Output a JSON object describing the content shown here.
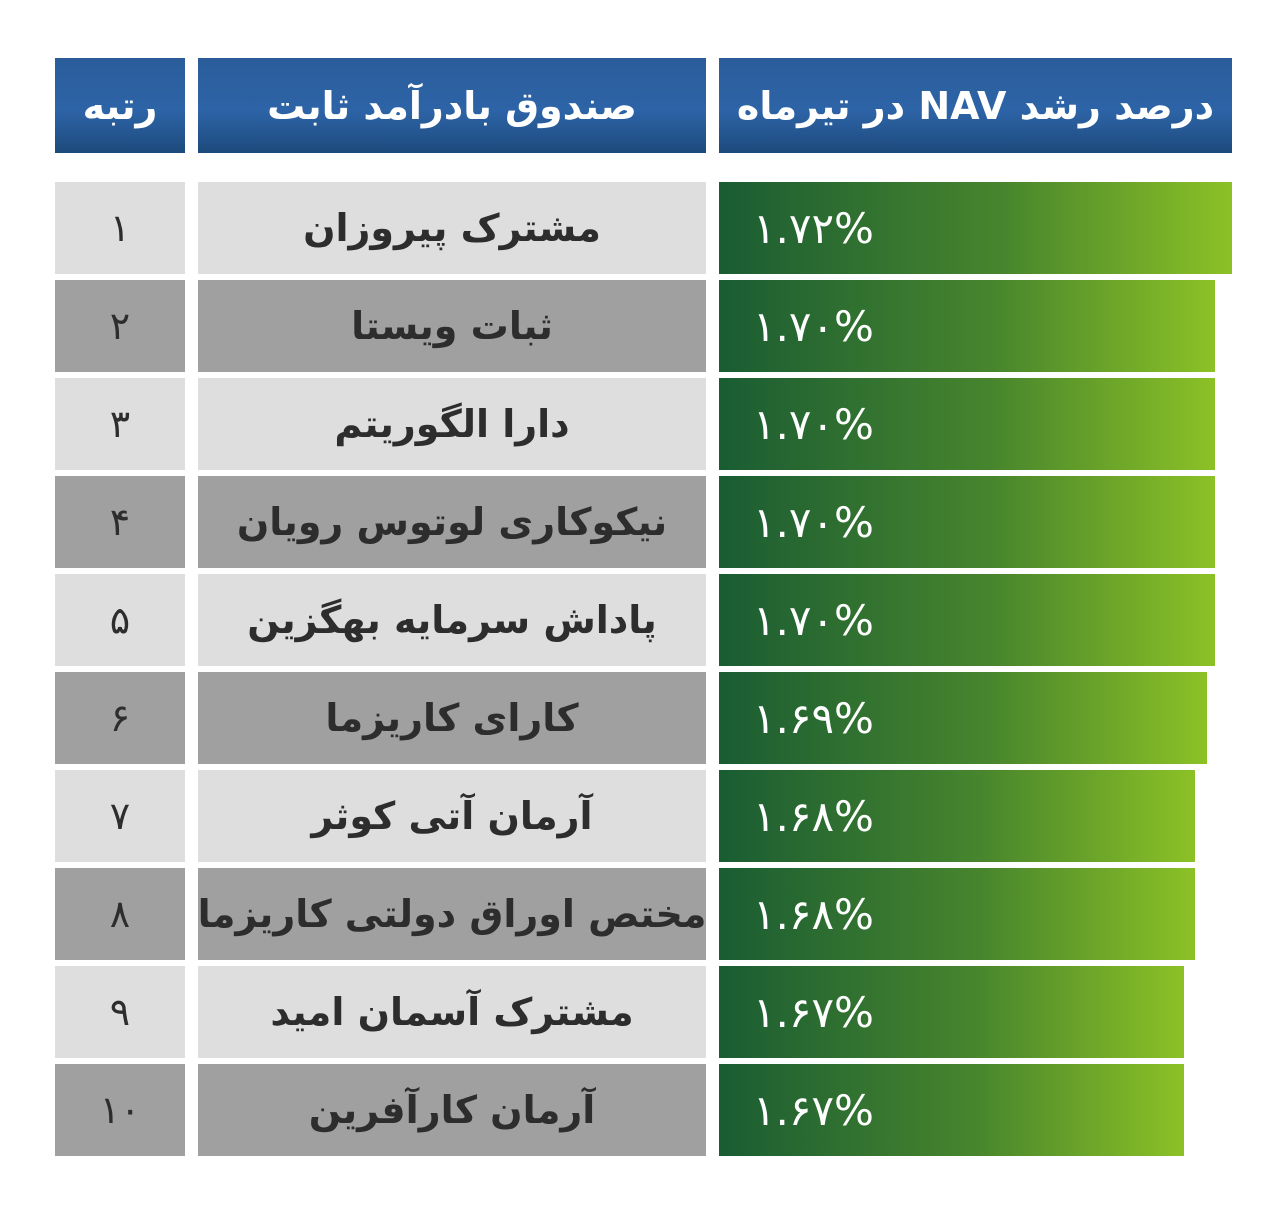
{
  "header": {
    "rank_label": "رتبه",
    "fund_label": "صندوق بادرآمد ثابت",
    "value_label": "درصد رشد NAV در تیرماه"
  },
  "colors": {
    "header_blue_top": "#2a5c9a",
    "header_blue_mid": "#2d64a7",
    "header_blue_bottom": "#1d4a7c",
    "bar_green_dark": "#1a5c33",
    "bar_green_light": "#8cc126",
    "row_light_gray": "#dedede",
    "row_dark_gray": "#a0a0a0",
    "text_dark": "#2d2d2d",
    "text_white": "#ffffff"
  },
  "chart_data": {
    "type": "bar",
    "orientation": "horizontal",
    "title": "درصد رشد NAV در تیرماه",
    "columns": {
      "rank": "رتبه",
      "fund": "صندوق بادرآمد ثابت",
      "value": "درصد رشد NAV در تیرماه"
    },
    "legend_position": "none",
    "grid": false,
    "rows": [
      {
        "rank": 1,
        "rank_fa": "۱",
        "name": "مشترک پیروزان",
        "value": 1.72,
        "label": "۱.۷۲%",
        "bar_pct": 100
      },
      {
        "rank": 2,
        "rank_fa": "۲",
        "name": "ثبات ویستا",
        "value": 1.7,
        "label": "۱.۷۰%",
        "bar_pct": 96.7
      },
      {
        "rank": 3,
        "rank_fa": "۳",
        "name": "دارا الگوریتم",
        "value": 1.7,
        "label": "۱.۷۰%",
        "bar_pct": 96.7
      },
      {
        "rank": 4,
        "rank_fa": "۴",
        "name": "نیکوکاری لوتوس رویان",
        "value": 1.7,
        "label": "۱.۷۰%",
        "bar_pct": 96.7
      },
      {
        "rank": 5,
        "rank_fa": "۵",
        "name": "پاداش سرمایه بهگزین",
        "value": 1.7,
        "label": "۱.۷۰%",
        "bar_pct": 96.7
      },
      {
        "rank": 6,
        "rank_fa": "۶",
        "name": "کارای کاریزما",
        "value": 1.69,
        "label": "۱.۶۹%",
        "bar_pct": 95.1
      },
      {
        "rank": 7,
        "rank_fa": "۷",
        "name": "آرمان آتی کوثر",
        "value": 1.68,
        "label": "۱.۶۸%",
        "bar_pct": 92.8
      },
      {
        "rank": 8,
        "rank_fa": "۸",
        "name": "مختص اوراق دولتی کاریزما",
        "value": 1.68,
        "label": "۱.۶۸%",
        "bar_pct": 92.8
      },
      {
        "rank": 9,
        "rank_fa": "۹",
        "name": "مشترک آسمان امید",
        "value": 1.67,
        "label": "۱.۶۷%",
        "bar_pct": 90.6
      },
      {
        "rank": 10,
        "rank_fa": "۱۰",
        "name": "آرمان کارآفرین",
        "value": 1.67,
        "label": "۱.۶۷%",
        "bar_pct": 90.6
      }
    ]
  }
}
